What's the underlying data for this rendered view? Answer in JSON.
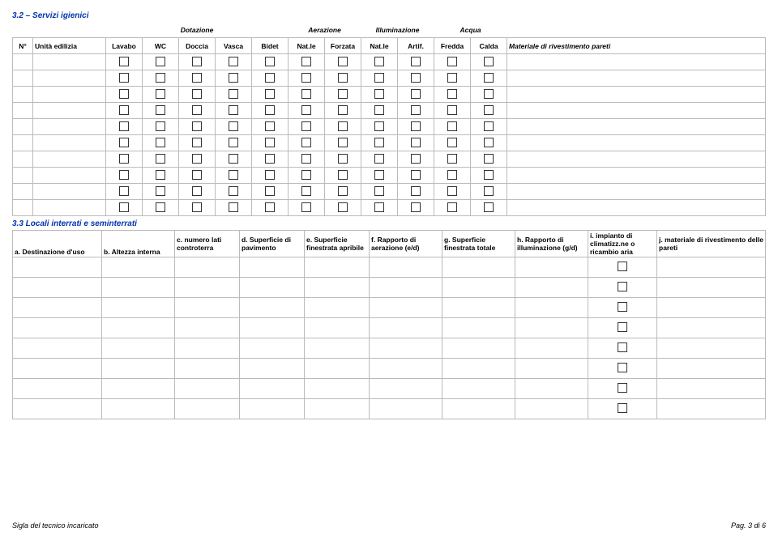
{
  "section32": {
    "title": "3.2 – Servizi igienici",
    "group_headers": [
      "Dotazione",
      "Aerazione",
      "Illuminazione",
      "Acqua"
    ],
    "cols": {
      "num": "N°",
      "unita": "Unità edilizia",
      "lavabo": "Lavabo",
      "wc": "WC",
      "doccia": "Doccia",
      "vasca": "Vasca",
      "bidet": "Bidet",
      "natle1": "Nat.le",
      "forzata": "Forzata",
      "natle2": "Nat.le",
      "artif": "Artif.",
      "fredda": "Fredda",
      "calda": "Calda",
      "materiale": "Materiale di rivestimento pareti"
    },
    "row_count": 10
  },
  "section33": {
    "title": "3.3 Locali interrati e seminterrati",
    "cols": {
      "a": "a. Destinazione d'uso",
      "b": "b. Altezza interna",
      "c": "c. numero lati controterra",
      "d": "d. Superficie di pavimento",
      "e": "e. Superficie finestrata apribile",
      "f": "f. Rapporto di aerazione (e/d)",
      "g": "g. Superficie finestrata totale",
      "h": "h. Rapporto di illuminazione (g/d)",
      "i": "i. impianto di climatizz.ne o ricambio aria",
      "j": "j. materiale di rivestimento delle pareti"
    },
    "row_count": 8
  },
  "footer": {
    "left": "Sigla del tecnico incaricato",
    "right": "Pag. 3 di 6"
  }
}
